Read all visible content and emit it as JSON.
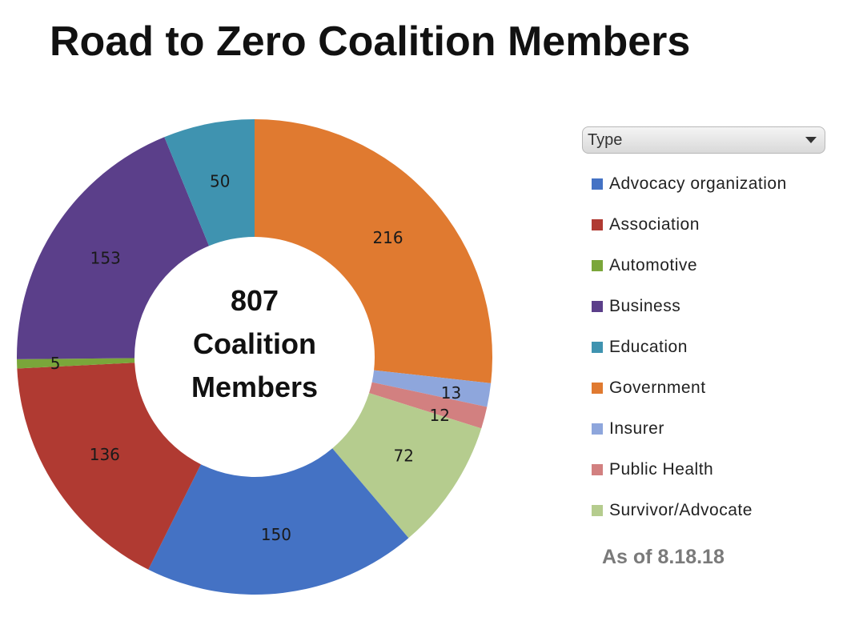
{
  "title": "Road to Zero Coalition Members",
  "center": {
    "line1": "807",
    "line2": "Coalition",
    "line3": "Members"
  },
  "legend": {
    "dropdown_label": "Type",
    "items": [
      {
        "label": "Advocacy organization",
        "color": "#4472c4"
      },
      {
        "label": "Association",
        "color": "#b03a32"
      },
      {
        "label": "Automotive",
        "color": "#7aa63a"
      },
      {
        "label": "Business",
        "color": "#5b3f8a"
      },
      {
        "label": "Education",
        "color": "#3f93b0"
      },
      {
        "label": "Government",
        "color": "#e07a30"
      },
      {
        "label": "Insurer",
        "color": "#8ea6dc"
      },
      {
        "label": "Public Health",
        "color": "#d28080"
      },
      {
        "label": "Survivor/Advocate",
        "color": "#b5cc8e"
      }
    ]
  },
  "as_of": "As of 8.18.18",
  "chart_data": {
    "type": "pie",
    "variant": "donut",
    "title": "Road to Zero Coalition Members",
    "center_label": "807 Coalition Members",
    "total": 807,
    "legend_title": "Type",
    "legend_position": "right",
    "start_angle_deg": 0,
    "direction": "clockwise",
    "slices": [
      {
        "name": "Government",
        "value": 216,
        "color": "#e07a30"
      },
      {
        "name": "Insurer",
        "value": 13,
        "color": "#8ea6dc"
      },
      {
        "name": "Public Health",
        "value": 12,
        "color": "#d28080"
      },
      {
        "name": "Survivor/Advocate",
        "value": 72,
        "color": "#b5cc8e"
      },
      {
        "name": "Advocacy organization",
        "value": 150,
        "color": "#4472c4"
      },
      {
        "name": "Association",
        "value": 136,
        "color": "#b03a32"
      },
      {
        "name": "Automotive",
        "value": 5,
        "color": "#7aa63a"
      },
      {
        "name": "Business",
        "value": 153,
        "color": "#5b3f8a"
      },
      {
        "name": "Education",
        "value": 50,
        "color": "#3f93b0"
      }
    ],
    "annotation": "As of 8.18.18"
  }
}
